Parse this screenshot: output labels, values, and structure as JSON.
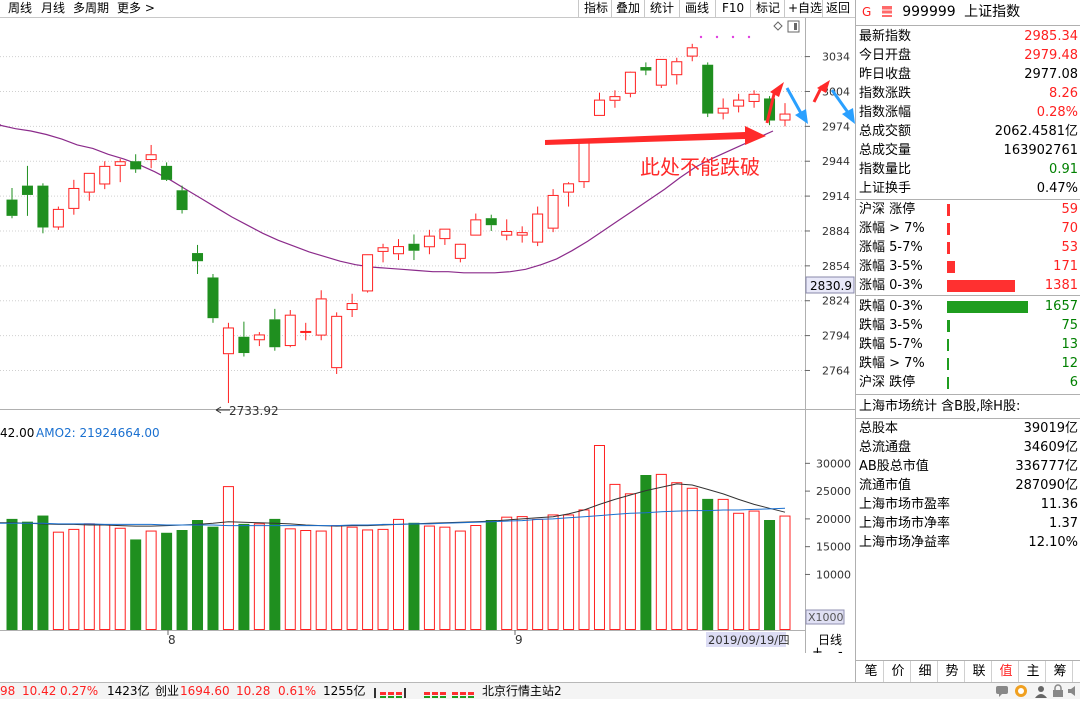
{
  "toolbar": {
    "left": [
      {
        "id": "week",
        "label": "周线"
      },
      {
        "id": "month",
        "label": "月线"
      },
      {
        "id": "multi",
        "label": "多周期"
      },
      {
        "id": "more",
        "label": "更多 >"
      }
    ],
    "right": [
      {
        "id": "indicator",
        "label": "指标"
      },
      {
        "id": "overlay",
        "label": "叠加"
      },
      {
        "id": "stats",
        "label": "统计"
      },
      {
        "id": "draw",
        "label": "画线"
      },
      {
        "id": "f10",
        "label": "F10"
      },
      {
        "id": "mark",
        "label": "标记"
      },
      {
        "id": "addfav",
        "label": "+自选"
      },
      {
        "id": "back",
        "label": "返回"
      }
    ]
  },
  "chart": {
    "y_ticks": [
      "3034",
      "3004",
      "2974",
      "2944",
      "2914",
      "2884",
      "2854",
      "2824",
      "2794",
      "2764"
    ],
    "current_price_tag": "2830.9",
    "low_label": "2733.92",
    "annotation": "此处不能跌破",
    "volume_header_prefix": "42.00",
    "volume_header_amo2": "AMO2: 21924664.00",
    "vol_ticks": [
      "30000",
      "25000",
      "20000",
      "15000",
      "10000"
    ],
    "vol_unit": "X1000",
    "x_labels": [
      "8",
      "9"
    ],
    "date_label": "2019/09/19/四",
    "period_label": "日线",
    "zoom_plus": "+",
    "zoom_minus": "-"
  },
  "chart_data": {
    "type": "candlestick",
    "ylim": [
      2730,
      3050
    ],
    "candles": [
      {
        "o": 2911,
        "h": 2921,
        "l": 2895,
        "c": 2897
      },
      {
        "o": 2923,
        "h": 2940,
        "l": 2897,
        "c": 2915
      },
      {
        "o": 2923,
        "h": 2925,
        "l": 2882,
        "c": 2887
      },
      {
        "o": 2887,
        "h": 2905,
        "l": 2885,
        "c": 2903
      },
      {
        "o": 2903,
        "h": 2928,
        "l": 2898,
        "c": 2921
      },
      {
        "o": 2917,
        "h": 2934,
        "l": 2910,
        "c": 2934
      },
      {
        "o": 2924,
        "h": 2944,
        "l": 2920,
        "c": 2940
      },
      {
        "o": 2940,
        "h": 2946,
        "l": 2926,
        "c": 2944
      },
      {
        "o": 2944,
        "h": 2950,
        "l": 2934,
        "c": 2937
      },
      {
        "o": 2945,
        "h": 2958,
        "l": 2938,
        "c": 2950
      },
      {
        "o": 2940,
        "h": 2943,
        "l": 2927,
        "c": 2928
      },
      {
        "o": 2919,
        "h": 2923,
        "l": 2899,
        "c": 2902
      },
      {
        "o": 2865,
        "h": 2872,
        "l": 2847,
        "c": 2858
      },
      {
        "o": 2844,
        "h": 2847,
        "l": 2805,
        "c": 2809
      },
      {
        "o": 2778,
        "h": 2805,
        "l": 2736,
        "c": 2801
      },
      {
        "o": 2793,
        "h": 2806,
        "l": 2776,
        "c": 2779
      },
      {
        "o": 2790,
        "h": 2797,
        "l": 2785,
        "c": 2795
      },
      {
        "o": 2808,
        "h": 2817,
        "l": 2781,
        "c": 2784
      },
      {
        "o": 2785,
        "h": 2816,
        "l": 2784,
        "c": 2812
      },
      {
        "o": 2798,
        "h": 2805,
        "l": 2790,
        "c": 2798
      },
      {
        "o": 2794,
        "h": 2833,
        "l": 2790,
        "c": 2826
      },
      {
        "o": 2766,
        "h": 2814,
        "l": 2761,
        "c": 2811
      },
      {
        "o": 2816,
        "h": 2830,
        "l": 2810,
        "c": 2822
      },
      {
        "o": 2832,
        "h": 2864,
        "l": 2831,
        "c": 2864
      },
      {
        "o": 2866,
        "h": 2873,
        "l": 2857,
        "c": 2870
      },
      {
        "o": 2864,
        "h": 2877,
        "l": 2859,
        "c": 2871
      },
      {
        "o": 2873,
        "h": 2881,
        "l": 2859,
        "c": 2867
      },
      {
        "o": 2870,
        "h": 2885,
        "l": 2864,
        "c": 2880
      },
      {
        "o": 2877,
        "h": 2886,
        "l": 2872,
        "c": 2886
      },
      {
        "o": 2860,
        "h": 2870,
        "l": 2857,
        "c": 2873
      },
      {
        "o": 2880,
        "h": 2899,
        "l": 2880,
        "c": 2894
      },
      {
        "o": 2895,
        "h": 2898,
        "l": 2884,
        "c": 2889
      },
      {
        "o": 2880,
        "h": 2894,
        "l": 2876,
        "c": 2884
      },
      {
        "o": 2880,
        "h": 2888,
        "l": 2874,
        "c": 2883
      },
      {
        "o": 2874,
        "h": 2905,
        "l": 2871,
        "c": 2899
      },
      {
        "o": 2886,
        "h": 2920,
        "l": 2883,
        "c": 2915
      },
      {
        "o": 2917,
        "h": 2926,
        "l": 2905,
        "c": 2925
      },
      {
        "o": 2926,
        "h": 2961,
        "l": 2921,
        "c": 2961
      },
      {
        "o": 2983,
        "h": 3003,
        "l": 2983,
        "c": 2997
      },
      {
        "o": 2996,
        "h": 3005,
        "l": 2990,
        "c": 3000
      },
      {
        "o": 3002,
        "h": 3020,
        "l": 2999,
        "c": 3021
      },
      {
        "o": 3025,
        "h": 3029,
        "l": 3018,
        "c": 3022
      },
      {
        "o": 3009,
        "h": 3032,
        "l": 3007,
        "c": 3032
      },
      {
        "o": 3018,
        "h": 3033,
        "l": 3010,
        "c": 3030
      },
      {
        "o": 3034,
        "h": 3045,
        "l": 3030,
        "c": 3042
      },
      {
        "o": 3027,
        "h": 3029,
        "l": 2982,
        "c": 2985
      },
      {
        "o": 2985,
        "h": 2998,
        "l": 2980,
        "c": 2990
      },
      {
        "o": 2991,
        "h": 3002,
        "l": 2986,
        "c": 2997
      },
      {
        "o": 2995,
        "h": 3005,
        "l": 2990,
        "c": 3002
      },
      {
        "o": 2998,
        "h": 3000,
        "l": 2975,
        "c": 2979
      },
      {
        "o": 2979,
        "h": 2994,
        "l": 2974,
        "c": 2985
      }
    ],
    "ma": [
      2975,
      2972,
      2970,
      2967,
      2963,
      2958,
      2955,
      2950,
      2946,
      2941,
      2935,
      2928,
      2920,
      2912,
      2904,
      2896,
      2889,
      2882,
      2876,
      2871,
      2866,
      2862,
      2858,
      2855,
      2853,
      2852,
      2851,
      2850,
      2849,
      2849,
      2848,
      2848,
      2848,
      2849,
      2851,
      2855,
      2860,
      2867,
      2875,
      2884,
      2893,
      2902,
      2911,
      2920,
      2930,
      2939,
      2946,
      2952,
      2958,
      2964,
      2970
    ],
    "volumes": [
      20000,
      19500,
      20600,
      17700,
      18200,
      19200,
      19000,
      18400,
      16300,
      17900,
      17500,
      18000,
      19800,
      18600,
      25900,
      19100,
      19200,
      20000,
      18300,
      18000,
      17900,
      18900,
      18600,
      18100,
      18200,
      20000,
      19300,
      18800,
      18600,
      17900,
      18900,
      19800,
      20400,
      20500,
      20000,
      20800,
      20800,
      21700,
      33300,
      26300,
      24600,
      27900,
      28100,
      26600,
      25600,
      23600,
      23600,
      21100,
      21500,
      19800,
      20600
    ],
    "vol_ma1": [
      19300,
      19200,
      19100,
      19000,
      19000,
      18900,
      18900,
      18800,
      18700,
      18700,
      18800,
      18900,
      19000,
      19200,
      19500,
      19400,
      19300,
      19200,
      19100,
      18900,
      18800,
      18700,
      18800,
      18800,
      18900,
      19000,
      19100,
      19200,
      19300,
      19400,
      19500,
      19600,
      19800,
      20000,
      20200,
      20400,
      20900,
      21600,
      22600,
      23500,
      24300,
      25100,
      25700,
      26300,
      26100,
      25300,
      24500,
      23500,
      22600,
      21900,
      21200
    ],
    "vol_ma2": [
      19200,
      19200,
      19200,
      19100,
      19100,
      19100,
      19000,
      19000,
      19000,
      19000,
      18900,
      18900,
      18900,
      18900,
      18800,
      18800,
      18800,
      18800,
      18800,
      18800,
      18800,
      18800,
      18900,
      18900,
      19000,
      19000,
      19100,
      19100,
      19200,
      19300,
      19400,
      19500,
      19600,
      19700,
      19900,
      20000,
      20200,
      20400,
      20600,
      20800,
      21000,
      21100,
      21300,
      21400,
      21500,
      21500,
      21600,
      21600,
      21700,
      21800,
      21900
    ],
    "vol_ylim": [
      0,
      36000
    ]
  },
  "quote": {
    "flag": "G",
    "code": "999999",
    "name": "上证指数",
    "rows": [
      {
        "label": "最新指数",
        "value": "2985.34",
        "cls": "red"
      },
      {
        "label": "今日开盘",
        "value": "2979.48",
        "cls": "red"
      },
      {
        "label": "昨日收盘",
        "value": "2977.08",
        "cls": "dark"
      },
      {
        "label": "指数涨跌",
        "value": "8.26",
        "cls": "red"
      },
      {
        "label": "指数涨幅",
        "value": "0.28%",
        "cls": "red"
      },
      {
        "label": "总成交额",
        "value": "2062.4581亿",
        "cls": "dark"
      },
      {
        "label": "总成交量",
        "value": "163902761",
        "cls": "dark"
      },
      {
        "label": "指数量比",
        "value": "0.91",
        "cls": "green"
      },
      {
        "label": "上证换手",
        "value": "0.47%",
        "cls": "dark"
      }
    ],
    "breadth_up": [
      {
        "label": "沪深 涨停",
        "value": "59",
        "pct": 2
      },
      {
        "label": "涨幅 > 7%",
        "value": "70",
        "pct": 2
      },
      {
        "label": "涨幅 5-7%",
        "value": "53",
        "pct": 2
      },
      {
        "label": "涨幅 3-5%",
        "value": "171",
        "pct": 6
      },
      {
        "label": "涨幅 0-3%",
        "value": "1381",
        "pct": 52
      }
    ],
    "breadth_down": [
      {
        "label": "跌幅 0-3%",
        "value": "1657",
        "pct": 62
      },
      {
        "label": "跌幅 3-5%",
        "value": "75",
        "pct": 2
      },
      {
        "label": "跌幅 5-7%",
        "value": "13",
        "pct": 1
      },
      {
        "label": "跌幅 > 7%",
        "value": "12",
        "pct": 1
      },
      {
        "label": "沪深 跌停",
        "value": "6",
        "pct": 1
      }
    ],
    "market_header": "上海市场统计 含B股,除H股:",
    "market": [
      {
        "label": "总股本",
        "value": "39019亿"
      },
      {
        "label": "总流通盘",
        "value": "34609亿"
      },
      {
        "label": "AB股总市值",
        "value": "336777亿"
      },
      {
        "label": "流通市值",
        "value": "287090亿"
      },
      {
        "label": "上海市场市盈率",
        "value": "11.36"
      },
      {
        "label": "上海市场市净率",
        "value": "1.37"
      },
      {
        "label": "上海市场净益率",
        "value": "12.10%"
      }
    ]
  },
  "tabs": [
    "笔",
    "价",
    "细",
    "势",
    "联",
    "值",
    "主",
    "筹"
  ],
  "status": {
    "sh_fragment": "98",
    "sh_change": "10.42",
    "sh_pct": "0.27%",
    "sh_amount": "1423亿",
    "cy_label": "创业",
    "cy_index": "1694.60",
    "cy_change": "10.28",
    "cy_pct": "0.61%",
    "cy_amount": "1255亿",
    "station": "北京行情主站2"
  }
}
